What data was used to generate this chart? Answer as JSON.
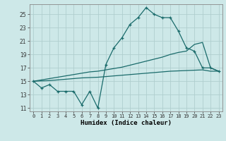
{
  "xlabel": "Humidex (Indice chaleur)",
  "background_color": "#cde8e8",
  "grid_color": "#b0cece",
  "line_color": "#1a6b6b",
  "xlim": [
    -0.5,
    23.5
  ],
  "ylim": [
    10.5,
    26.5
  ],
  "xtick_labels": [
    "0",
    "1",
    "2",
    "3",
    "4",
    "5",
    "6",
    "7",
    "8",
    "9",
    "10",
    "11",
    "12",
    "13",
    "14",
    "15",
    "16",
    "17",
    "18",
    "19",
    "20",
    "21",
    "22",
    "23"
  ],
  "ytick_values": [
    11,
    13,
    15,
    17,
    19,
    21,
    23,
    25
  ],
  "series": {
    "main": {
      "x": [
        0,
        1,
        2,
        3,
        4,
        5,
        6,
        7,
        8,
        9,
        10,
        11,
        12,
        13,
        14,
        15,
        16,
        17,
        18,
        19,
        20,
        21,
        22,
        23
      ],
      "y": [
        15,
        14,
        14.5,
        13.5,
        13.5,
        13.5,
        11.5,
        13.5,
        11,
        17.5,
        20,
        21.5,
        23.5,
        24.5,
        26,
        25,
        24.5,
        24.5,
        22.5,
        20,
        19.5,
        17,
        17,
        16.5
      ]
    },
    "upper": {
      "x": [
        0,
        1,
        2,
        3,
        4,
        5,
        6,
        7,
        8,
        9,
        10,
        11,
        12,
        13,
        14,
        15,
        16,
        17,
        18,
        19,
        20,
        21,
        22,
        23
      ],
      "y": [
        15,
        15.2,
        15.4,
        15.6,
        15.8,
        16.0,
        16.2,
        16.4,
        16.5,
        16.7,
        16.9,
        17.1,
        17.4,
        17.7,
        18.0,
        18.3,
        18.6,
        19.0,
        19.3,
        19.5,
        20.5,
        20.8,
        17.0,
        16.5
      ]
    },
    "lower": {
      "x": [
        0,
        1,
        2,
        3,
        4,
        5,
        6,
        7,
        8,
        9,
        10,
        11,
        12,
        13,
        14,
        15,
        16,
        17,
        18,
        19,
        20,
        21,
        22,
        23
      ],
      "y": [
        15,
        15.05,
        15.1,
        15.2,
        15.3,
        15.4,
        15.5,
        15.55,
        15.6,
        15.7,
        15.8,
        15.9,
        16.0,
        16.1,
        16.2,
        16.3,
        16.4,
        16.5,
        16.55,
        16.6,
        16.65,
        16.7,
        16.5,
        16.5
      ]
    }
  }
}
